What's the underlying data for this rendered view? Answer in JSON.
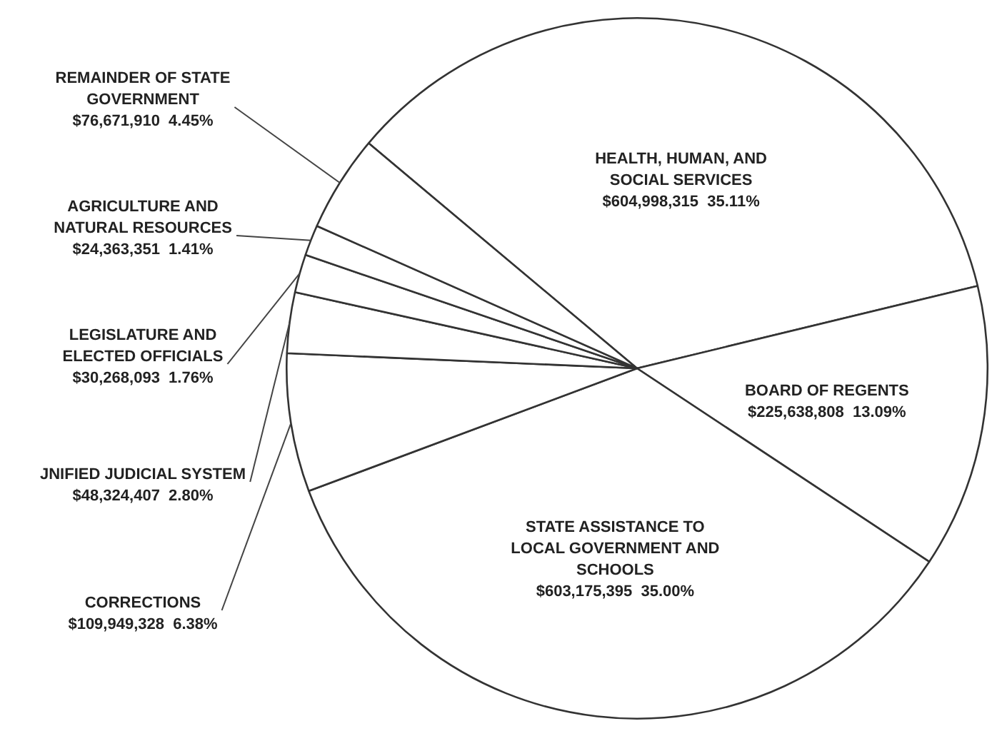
{
  "chart_data": {
    "type": "pie",
    "categories": [
      "HEALTH, HUMAN, AND SOCIAL SERVICES",
      "BOARD OF REGENTS",
      "STATE ASSISTANCE TO LOCAL GOVERNMENT AND SCHOOLS",
      "CORRECTIONS",
      "JNIFIED JUDICIAL SYSTEM",
      "LEGISLATURE AND ELECTED OFFICIALS",
      "AGRICULTURE AND NATURAL RESOURCES",
      "REMAINDER OF STATE GOVERNMENT"
    ],
    "values": [
      604998315,
      225638808,
      603175395,
      109949328,
      48324407,
      30268093,
      24363351,
      76671910
    ],
    "value_labels": [
      "$604,998,315  35.11%",
      "$225,638,808  13.09%",
      "$603,175,395  35.00%",
      "$109,949,328  6.38%",
      "$48,324,407  2.80%",
      "$30,268,093  1.76%",
      "$24,363,351  1.41%",
      "$76,671,910  4.45%"
    ],
    "colors": [
      "#ffffff",
      "#ffffff",
      "#ffffff",
      "#ffffff",
      "#ffffff",
      "#ffffff",
      "#ffffff",
      "#ffffff"
    ],
    "legend": false
  }
}
